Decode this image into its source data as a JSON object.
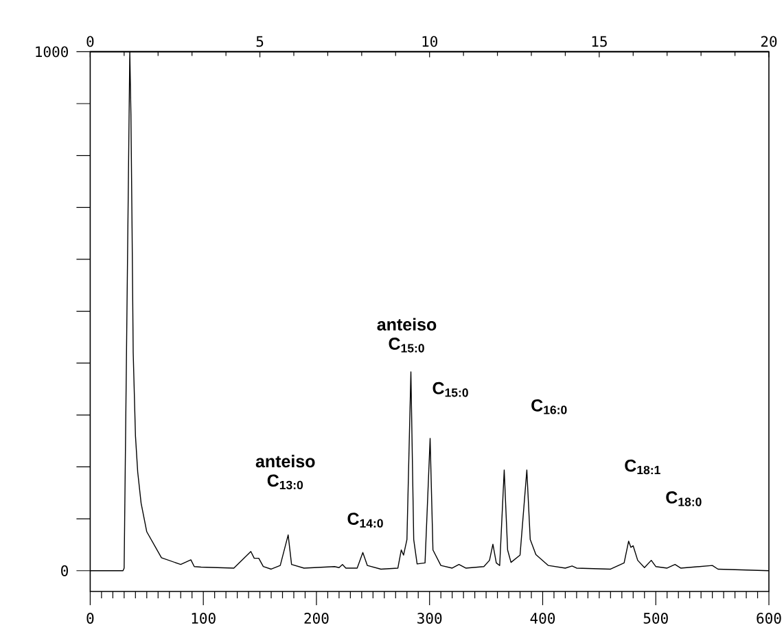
{
  "chart_data": {
    "type": "line",
    "color": "#000000",
    "line_style": "solid",
    "x": [
      0,
      29,
      30,
      35,
      36,
      37,
      38,
      40,
      42,
      45,
      50,
      63,
      80,
      89,
      92,
      98,
      127,
      142,
      145,
      149,
      153,
      160,
      168,
      175,
      178,
      189,
      216,
      220,
      223,
      226,
      236,
      241,
      245,
      257,
      272,
      275,
      277,
      280,
      283.5,
      286,
      289,
      296,
      300.5,
      303,
      310,
      320,
      326,
      332,
      348,
      353,
      356,
      359,
      362,
      366,
      369,
      372,
      380,
      386,
      389,
      394,
      405,
      420,
      426,
      430,
      460,
      472,
      476,
      478,
      480,
      484,
      490,
      496,
      500,
      510,
      517,
      522,
      550,
      555,
      600
    ],
    "values": [
      0,
      0,
      5,
      1000,
      880,
      660,
      420,
      260,
      190,
      130,
      75,
      25,
      12,
      21,
      8,
      7,
      5,
      37,
      24,
      24,
      8,
      3,
      10,
      69,
      12,
      5,
      8,
      6,
      12,
      5,
      5,
      35,
      10,
      3,
      5,
      40,
      30,
      60,
      383,
      60,
      13,
      15,
      255,
      40,
      10,
      5,
      12,
      5,
      8,
      20,
      51,
      15,
      10,
      194,
      40,
      16,
      30,
      194,
      60,
      31,
      10,
      5,
      9,
      5,
      3,
      15,
      57,
      45,
      48,
      20,
      6,
      20,
      8,
      5,
      12,
      5,
      10,
      3,
      0
    ],
    "xlim": [
      0,
      600
    ],
    "xticks": [
      0,
      100,
      200,
      300,
      400,
      500,
      600
    ],
    "ylim": [
      -40,
      1000
    ],
    "yticks": [
      0,
      {
        "value": 100,
        "label": null
      },
      {
        "value": 200,
        "label": null
      },
      {
        "value": 300,
        "label": null
      },
      {
        "value": 400,
        "label": null
      },
      {
        "value": 500,
        "label": null
      },
      {
        "value": 600,
        "label": null
      },
      {
        "value": 700,
        "label": null
      },
      {
        "value": 800,
        "label": null
      },
      {
        "value": 900,
        "label": null
      },
      1000
    ],
    "x2lim": [
      0,
      20
    ],
    "x2ticks": [
      0,
      5,
      10,
      15,
      20
    ],
    "annotations": [
      {
        "text": "anteiso C$_{13:0}$",
        "x": 175,
        "y": 69
      },
      {
        "text": "C$_{14:0}$",
        "x": 241,
        "y": 35
      },
      {
        "text": "anteiso C$_{15:0}$",
        "x": 283.5,
        "y": 383
      },
      {
        "text": "C$_{15:0}$",
        "x": 300.5,
        "y": 255
      },
      "C$_{16:0}$",
      "C$_{18:1}$",
      "C$_{18:0}$"
    ]
  }
}
